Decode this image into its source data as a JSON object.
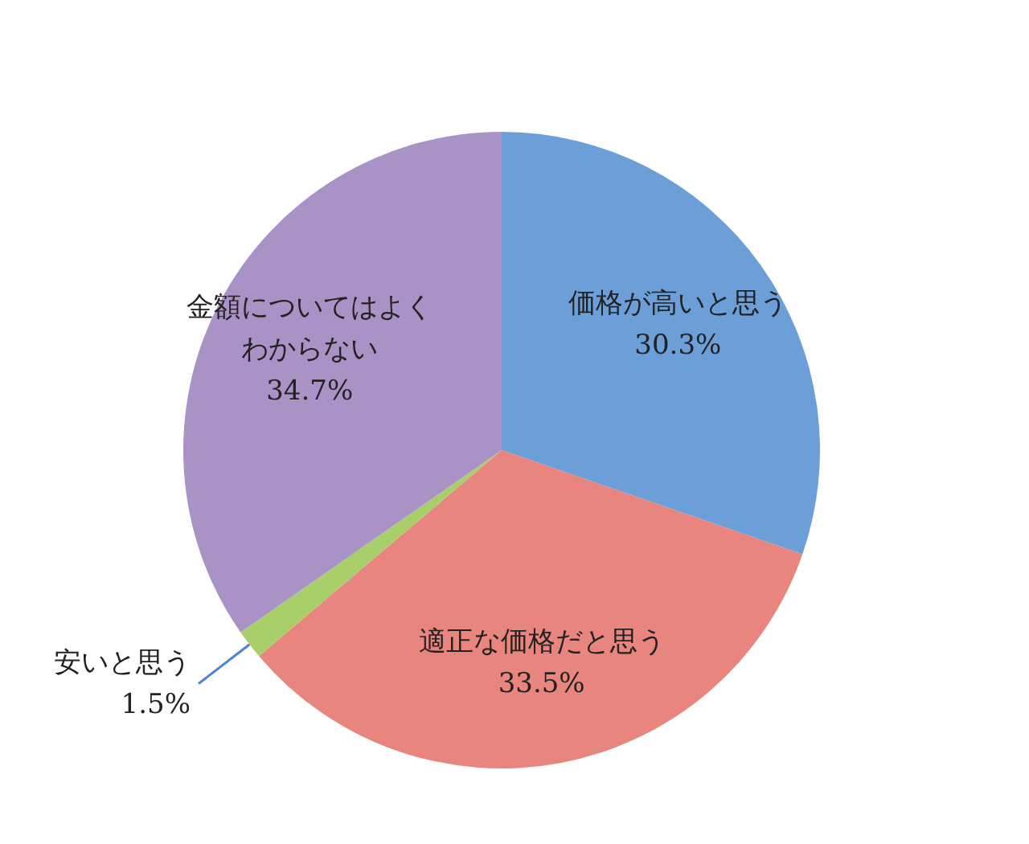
{
  "chart_data": {
    "type": "pie",
    "categories": [
      "価格が高いと思う",
      "適正な価格だと思う",
      "安いと思う",
      "金額についてはよくわからない"
    ],
    "values": [
      30.3,
      33.5,
      1.5,
      34.7
    ],
    "value_labels": [
      "30.3%",
      "33.5%",
      "1.5%",
      "34.7%"
    ],
    "colors": [
      "#6c9fd8",
      "#e9857f",
      "#a9cf6a",
      "#a993c6"
    ]
  }
}
